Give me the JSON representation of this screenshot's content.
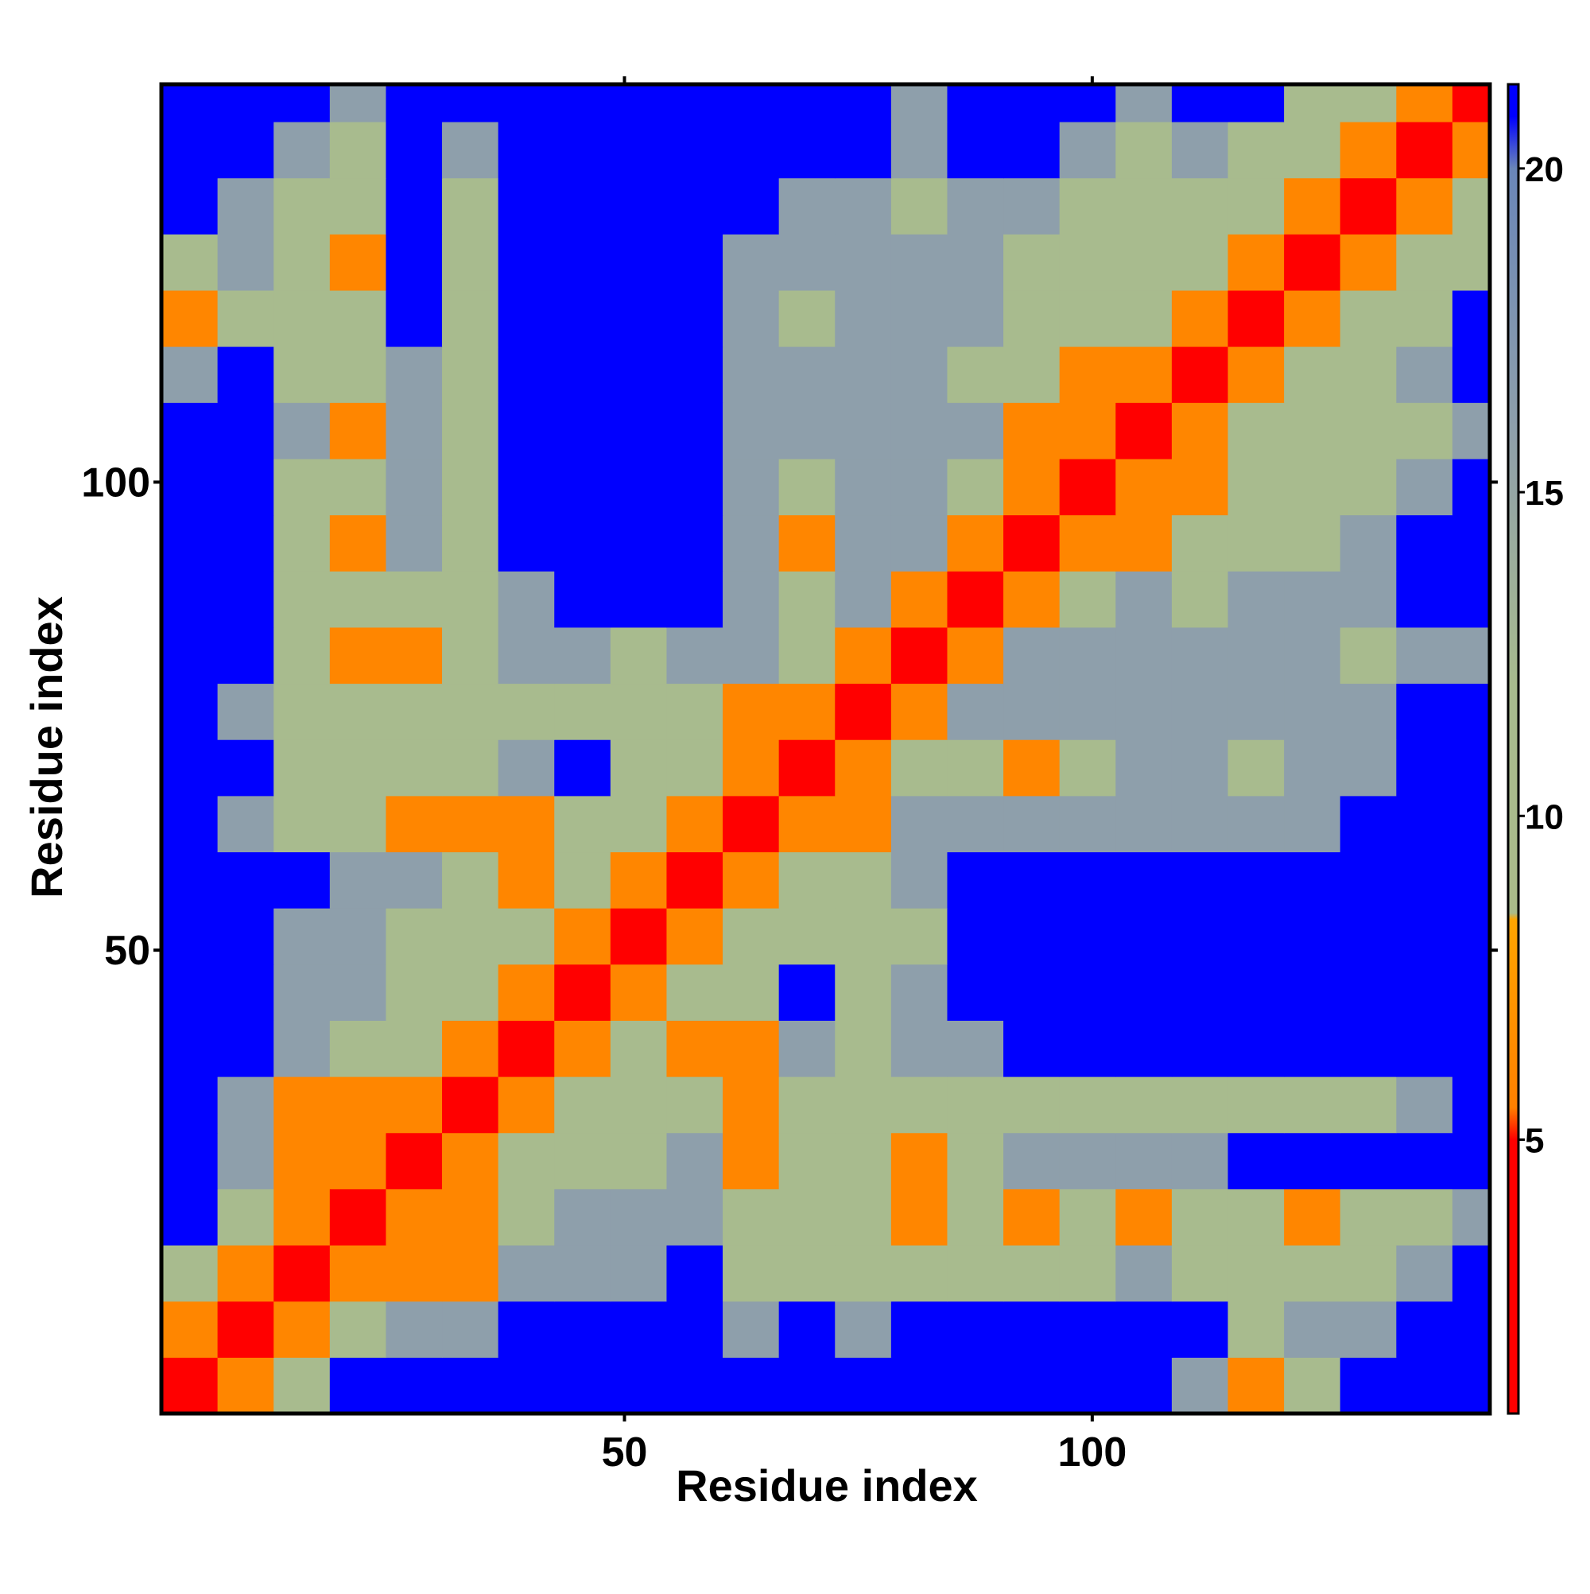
{
  "chart_data": {
    "type": "heatmap",
    "x_label": "Residue index",
    "y_label": "Residue index",
    "x": [
      3.5,
      9.5,
      15.5,
      21.5,
      27.5,
      33.5,
      39.5,
      45.5,
      51.5,
      57.5,
      63.5,
      69.5,
      75.5,
      81.5,
      87.5,
      93.5,
      99.5,
      105.5,
      111.5,
      117.5,
      123.5,
      129.5,
      135.5,
      141.5
    ],
    "y": [
      3.5,
      9.5,
      15.5,
      21.5,
      27.5,
      33.5,
      39.5,
      45.5,
      51.5,
      57.5,
      63.5,
      69.5,
      75.5,
      81.5,
      87.5,
      93.5,
      99.5,
      105.5,
      111.5,
      117.5,
      123.5,
      129.5,
      135.5,
      141.5
    ],
    "z": [
      [
        2,
        6,
        12,
        21,
        21,
        21,
        21,
        21,
        21,
        21,
        21,
        21,
        21,
        21,
        21,
        21,
        21,
        21,
        16,
        6,
        12,
        21,
        21,
        21
      ],
      [
        6,
        2,
        6,
        12,
        16,
        16,
        21,
        21,
        21,
        21,
        16,
        21,
        16,
        21,
        21,
        21,
        21,
        21,
        21,
        12,
        16,
        16,
        21,
        21
      ],
      [
        12,
        6,
        2,
        6,
        6,
        6,
        16,
        16,
        16,
        21,
        12,
        12,
        12,
        12,
        12,
        12,
        12,
        16,
        12,
        12,
        12,
        12,
        16,
        21
      ],
      [
        21,
        12,
        6,
        2,
        6,
        6,
        12,
        16,
        16,
        16,
        12,
        12,
        12,
        6,
        12,
        6,
        12,
        6,
        12,
        12,
        6,
        12,
        12,
        16
      ],
      [
        21,
        16,
        6,
        6,
        2,
        6,
        12,
        12,
        12,
        16,
        6,
        12,
        12,
        6,
        12,
        16,
        16,
        16,
        16,
        21,
        21,
        21,
        21,
        21
      ],
      [
        21,
        16,
        6,
        6,
        6,
        2,
        6,
        12,
        12,
        12,
        6,
        12,
        12,
        12,
        12,
        12,
        12,
        12,
        12,
        12,
        12,
        12,
        16,
        21
      ],
      [
        21,
        21,
        16,
        12,
        12,
        6,
        2,
        6,
        12,
        6,
        6,
        16,
        12,
        16,
        16,
        21,
        21,
        21,
        21,
        21,
        21,
        21,
        21,
        21
      ],
      [
        21,
        21,
        16,
        16,
        12,
        12,
        6,
        2,
        6,
        12,
        12,
        21,
        12,
        16,
        21,
        21,
        21,
        21,
        21,
        21,
        21,
        21,
        21,
        21
      ],
      [
        21,
        21,
        16,
        16,
        12,
        12,
        12,
        6,
        2,
        6,
        12,
        12,
        12,
        12,
        21,
        21,
        21,
        21,
        21,
        21,
        21,
        21,
        21,
        21
      ],
      [
        21,
        21,
        21,
        16,
        16,
        12,
        6,
        12,
        6,
        2,
        6,
        12,
        12,
        16,
        21,
        21,
        21,
        21,
        21,
        21,
        21,
        21,
        21,
        21
      ],
      [
        21,
        16,
        12,
        12,
        6,
        6,
        6,
        12,
        12,
        6,
        2,
        6,
        6,
        16,
        16,
        16,
        16,
        16,
        16,
        16,
        16,
        21,
        21,
        21
      ],
      [
        21,
        21,
        12,
        12,
        12,
        12,
        16,
        21,
        12,
        12,
        6,
        2,
        6,
        12,
        12,
        6,
        12,
        16,
        16,
        12,
        16,
        16,
        21,
        21
      ],
      [
        21,
        16,
        12,
        12,
        12,
        12,
        12,
        12,
        12,
        12,
        6,
        6,
        2,
        6,
        16,
        16,
        16,
        16,
        16,
        16,
        16,
        16,
        21,
        21
      ],
      [
        21,
        21,
        12,
        6,
        6,
        12,
        16,
        16,
        12,
        16,
        16,
        12,
        6,
        2,
        6,
        16,
        16,
        16,
        16,
        16,
        16,
        12,
        16,
        16
      ],
      [
        21,
        21,
        12,
        12,
        12,
        12,
        16,
        21,
        21,
        21,
        16,
        12,
        16,
        6,
        2,
        6,
        12,
        16,
        12,
        16,
        16,
        16,
        21,
        21
      ],
      [
        21,
        21,
        12,
        6,
        16,
        12,
        21,
        21,
        21,
        21,
        16,
        6,
        16,
        16,
        6,
        2,
        6,
        6,
        12,
        12,
        12,
        16,
        21,
        21
      ],
      [
        21,
        21,
        12,
        12,
        16,
        12,
        21,
        21,
        21,
        21,
        16,
        12,
        16,
        16,
        12,
        6,
        2,
        6,
        6,
        12,
        12,
        12,
        16,
        21
      ],
      [
        21,
        21,
        16,
        6,
        16,
        12,
        21,
        21,
        21,
        21,
        16,
        16,
        16,
        16,
        16,
        6,
        6,
        2,
        6,
        12,
        12,
        12,
        12,
        16
      ],
      [
        16,
        21,
        12,
        12,
        16,
        12,
        21,
        21,
        21,
        21,
        16,
        16,
        16,
        16,
        12,
        12,
        6,
        6,
        2,
        6,
        12,
        12,
        16,
        21
      ],
      [
        6,
        12,
        12,
        12,
        21,
        12,
        21,
        21,
        21,
        21,
        16,
        12,
        16,
        16,
        16,
        12,
        12,
        12,
        6,
        2,
        6,
        12,
        12,
        21
      ],
      [
        12,
        16,
        12,
        6,
        21,
        12,
        21,
        21,
        21,
        21,
        16,
        16,
        16,
        16,
        16,
        12,
        12,
        12,
        12,
        6,
        2,
        6,
        12,
        12
      ],
      [
        21,
        16,
        12,
        12,
        21,
        12,
        21,
        21,
        21,
        21,
        21,
        16,
        16,
        12,
        16,
        16,
        12,
        12,
        12,
        12,
        6,
        2,
        6,
        12
      ],
      [
        21,
        21,
        16,
        12,
        21,
        16,
        21,
        21,
        21,
        21,
        21,
        21,
        21,
        16,
        21,
        21,
        16,
        12,
        16,
        12,
        12,
        6,
        2,
        6
      ],
      [
        21,
        21,
        21,
        16,
        21,
        21,
        21,
        21,
        21,
        21,
        21,
        21,
        21,
        16,
        21,
        21,
        21,
        16,
        21,
        21,
        12,
        12,
        6,
        2
      ]
    ],
    "xlim": [
      0.5,
      142.5
    ],
    "ylim": [
      0.5,
      142.5
    ],
    "xticks": [
      50,
      100
    ],
    "yticks": [
      50,
      100
    ],
    "colorbar_lim": [
      0.77,
      21.3
    ],
    "colorbar_ticks": [
      5,
      10,
      15,
      20
    ],
    "colorscale": [
      [
        0.77,
        "#ff0000"
      ],
      [
        5,
        "#ff0000"
      ],
      [
        5.5,
        "#ff8000"
      ],
      [
        8.4,
        "#ffa500"
      ],
      [
        8.5,
        "#aabb8a"
      ],
      [
        12,
        "#a8bb8e"
      ],
      [
        16,
        "#8e9fab"
      ],
      [
        20,
        "#6a86b8"
      ],
      [
        20.8,
        "#0000ff"
      ],
      [
        21.3,
        "#0000ff"
      ]
    ]
  }
}
